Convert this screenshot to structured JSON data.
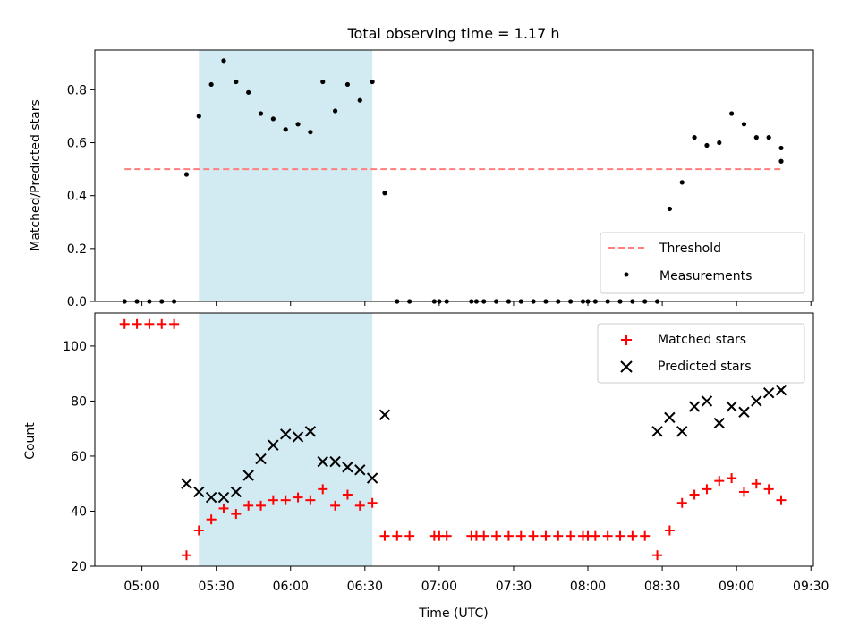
{
  "chart_data": [
    {
      "type": "scatter",
      "title": "Total observing time = 1.17 h",
      "xlabel": "",
      "ylabel": "Matched/Predicted stars",
      "ylim": [
        0,
        0.95
      ],
      "xlim": [
        "04:41",
        "09:31"
      ],
      "yticks": [
        0.0,
        0.2,
        0.4,
        0.6,
        0.8
      ],
      "yticklabels": [
        "0.0",
        "0.2",
        "0.4",
        "0.6",
        "0.8"
      ],
      "shaded_region": {
        "x_start": "05:23",
        "x_end": "06:33",
        "color": "#add8e6"
      },
      "legend": {
        "position": "lower right",
        "entries": [
          "Threshold",
          "Measurements"
        ]
      },
      "series": [
        {
          "name": "Threshold",
          "style": "dashed-line",
          "color": "#ff7f7f",
          "x": [
            "04:53",
            "09:18"
          ],
          "y": [
            0.5,
            0.5
          ]
        },
        {
          "name": "Measurements",
          "style": "dot",
          "color": "#000000",
          "x": [
            "04:53",
            "04:58",
            "05:03",
            "05:08",
            "05:13",
            "05:18",
            "05:23",
            "05:28",
            "05:33",
            "05:38",
            "05:43",
            "05:48",
            "05:53",
            "05:58",
            "06:03",
            "06:08",
            "06:13",
            "06:18",
            "06:23",
            "06:28",
            "06:33",
            "06:38",
            "06:43",
            "06:48",
            "06:58",
            "07:00",
            "07:03",
            "07:13",
            "07:15",
            "07:18",
            "07:23",
            "07:28",
            "07:33",
            "07:38",
            "07:43",
            "07:48",
            "07:53",
            "07:58",
            "08:00",
            "08:03",
            "08:08",
            "08:13",
            "08:18",
            "08:23",
            "08:28",
            "08:33",
            "08:38",
            "08:43",
            "08:48",
            "08:53",
            "08:58",
            "09:03",
            "09:08",
            "09:13",
            "09:18"
          ],
          "y": [
            0,
            0,
            0,
            0,
            0,
            0.48,
            0.7,
            0.82,
            0.91,
            0.83,
            0.79,
            0.71,
            0.69,
            0.65,
            0.67,
            0.64,
            0.83,
            0.72,
            0.82,
            0.76,
            0.83,
            0.41,
            0,
            0,
            0,
            0,
            0,
            0,
            0,
            0,
            0,
            0,
            0,
            0,
            0,
            0,
            0,
            0,
            0,
            0,
            0,
            0,
            0,
            0,
            0,
            0.35,
            0.45,
            0.62,
            0.59,
            0.6,
            0.71,
            0.67,
            0.62,
            0.62,
            0.58
          ]
        }
      ],
      "extra_point": {
        "x": "09:18",
        "y": 0.53
      }
    },
    {
      "type": "scatter",
      "title": "",
      "xlabel": "Time (UTC)",
      "ylabel": "Count",
      "ylim": [
        20,
        112
      ],
      "xlim": [
        "04:41",
        "09:31"
      ],
      "yticks": [
        20,
        40,
        60,
        80,
        100
      ],
      "yticklabels": [
        "20",
        "40",
        "60",
        "80",
        "100"
      ],
      "xticks": [
        "05:00",
        "05:30",
        "06:00",
        "06:30",
        "07:00",
        "07:30",
        "08:00",
        "08:30",
        "09:00",
        "09:30"
      ],
      "shaded_region": {
        "x_start": "05:23",
        "x_end": "06:33",
        "color": "#add8e6"
      },
      "legend": {
        "position": "upper right",
        "entries": [
          "Matched stars",
          "Predicted stars"
        ]
      },
      "series": [
        {
          "name": "Matched stars",
          "style": "plus",
          "color": "#ff0000",
          "x": [
            "04:53",
            "04:58",
            "05:03",
            "05:08",
            "05:13",
            "05:18",
            "05:23",
            "05:28",
            "05:33",
            "05:38",
            "05:43",
            "05:48",
            "05:53",
            "05:58",
            "06:03",
            "06:08",
            "06:13",
            "06:18",
            "06:23",
            "06:28",
            "06:33",
            "06:38",
            "06:43",
            "06:48",
            "06:58",
            "07:00",
            "07:03",
            "07:13",
            "07:15",
            "07:18",
            "07:23",
            "07:28",
            "07:33",
            "07:38",
            "07:43",
            "07:48",
            "07:53",
            "07:58",
            "08:00",
            "08:03",
            "08:08",
            "08:13",
            "08:18",
            "08:23",
            "08:28",
            "08:33",
            "08:38",
            "08:43",
            "08:48",
            "08:53",
            "08:58",
            "09:03",
            "09:08",
            "09:13",
            "09:18"
          ],
          "y": [
            108,
            108,
            108,
            108,
            108,
            24,
            33,
            37,
            41,
            39,
            42,
            42,
            44,
            44,
            45,
            44,
            48,
            42,
            46,
            42,
            43,
            31,
            31,
            31,
            31,
            31,
            31,
            31,
            31,
            31,
            31,
            31,
            31,
            31,
            31,
            31,
            31,
            31,
            31,
            31,
            31,
            31,
            31,
            31,
            24,
            33,
            43,
            46,
            48,
            51,
            52,
            47,
            50,
            48,
            44
          ]
        },
        {
          "name": "Predicted stars",
          "style": "cross",
          "color": "#000000",
          "x": [
            "05:18",
            "05:23",
            "05:28",
            "05:33",
            "05:38",
            "05:43",
            "05:48",
            "05:53",
            "05:58",
            "06:03",
            "06:08",
            "06:13",
            "06:18",
            "06:23",
            "06:28",
            "06:33",
            "06:38",
            "08:28",
            "08:33",
            "08:38",
            "08:43",
            "08:48",
            "08:53",
            "08:58",
            "09:03",
            "09:08",
            "09:13",
            "09:18"
          ],
          "y": [
            50,
            47,
            45,
            45,
            47,
            53,
            59,
            64,
            68,
            67,
            69,
            58,
            58,
            56,
            55,
            52,
            75,
            69,
            74,
            69,
            78,
            80,
            72,
            78,
            76,
            80,
            83,
            84
          ]
        }
      ]
    }
  ]
}
